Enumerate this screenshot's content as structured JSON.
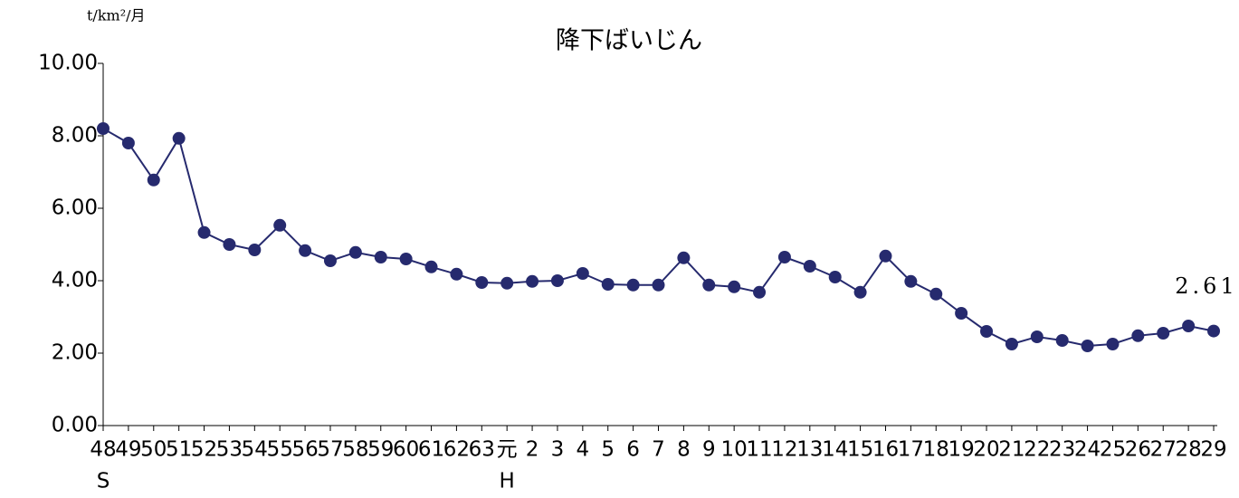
{
  "chart_data": {
    "type": "line",
    "title": "降下ばいじん",
    "y_unit": "t/km²/月",
    "categories": [
      "48",
      "49",
      "50",
      "51",
      "52",
      "53",
      "54",
      "55",
      "56",
      "57",
      "58",
      "59",
      "60",
      "61",
      "62",
      "63",
      "元",
      "2",
      "3",
      "4",
      "5",
      "6",
      "7",
      "8",
      "9",
      "10",
      "11",
      "12",
      "13",
      "14",
      "15",
      "16",
      "17",
      "18",
      "19",
      "20",
      "21",
      "22",
      "23",
      "24",
      "25",
      "26",
      "27",
      "28",
      "29"
    ],
    "category_eras": [
      "S",
      null,
      null,
      null,
      null,
      null,
      null,
      null,
      null,
      null,
      null,
      null,
      null,
      null,
      null,
      null,
      "H",
      null,
      null,
      null,
      null,
      null,
      null,
      null,
      null,
      null,
      null,
      null,
      null,
      null,
      null,
      null,
      null,
      null,
      null,
      null,
      null,
      null,
      null,
      null,
      null,
      null,
      null,
      null,
      null
    ],
    "series": [
      {
        "color": "#262a6e",
        "values": [
          8.2,
          7.8,
          6.78,
          7.93,
          5.33,
          5.0,
          4.85,
          5.53,
          4.83,
          4.55,
          4.78,
          4.65,
          4.6,
          4.38,
          4.18,
          3.95,
          3.93,
          3.98,
          4.0,
          4.2,
          3.9,
          3.88,
          3.88,
          4.63,
          3.88,
          3.83,
          3.68,
          4.65,
          4.4,
          4.1,
          3.68,
          4.68,
          3.98,
          3.63,
          3.1,
          2.6,
          2.25,
          2.45,
          2.35,
          2.2,
          2.25,
          2.48,
          2.55,
          2.75,
          2.61
        ],
        "value_labels": [
          null,
          null,
          null,
          null,
          null,
          null,
          null,
          null,
          null,
          null,
          null,
          null,
          null,
          null,
          null,
          null,
          null,
          null,
          null,
          null,
          null,
          null,
          null,
          null,
          null,
          null,
          null,
          null,
          null,
          null,
          null,
          null,
          null,
          null,
          null,
          null,
          null,
          null,
          null,
          null,
          null,
          null,
          null,
          null,
          "2.61"
        ]
      }
    ],
    "ylim": [
      0,
      10
    ],
    "yticks": [
      {
        "value": 0,
        "label": "0.00"
      },
      {
        "value": 2,
        "label": "2.00"
      },
      {
        "value": 4,
        "label": "4.00"
      },
      {
        "value": 6,
        "label": "6.00"
      },
      {
        "value": 8,
        "label": "8.00"
      },
      {
        "value": 10,
        "label": "10.00"
      }
    ]
  }
}
